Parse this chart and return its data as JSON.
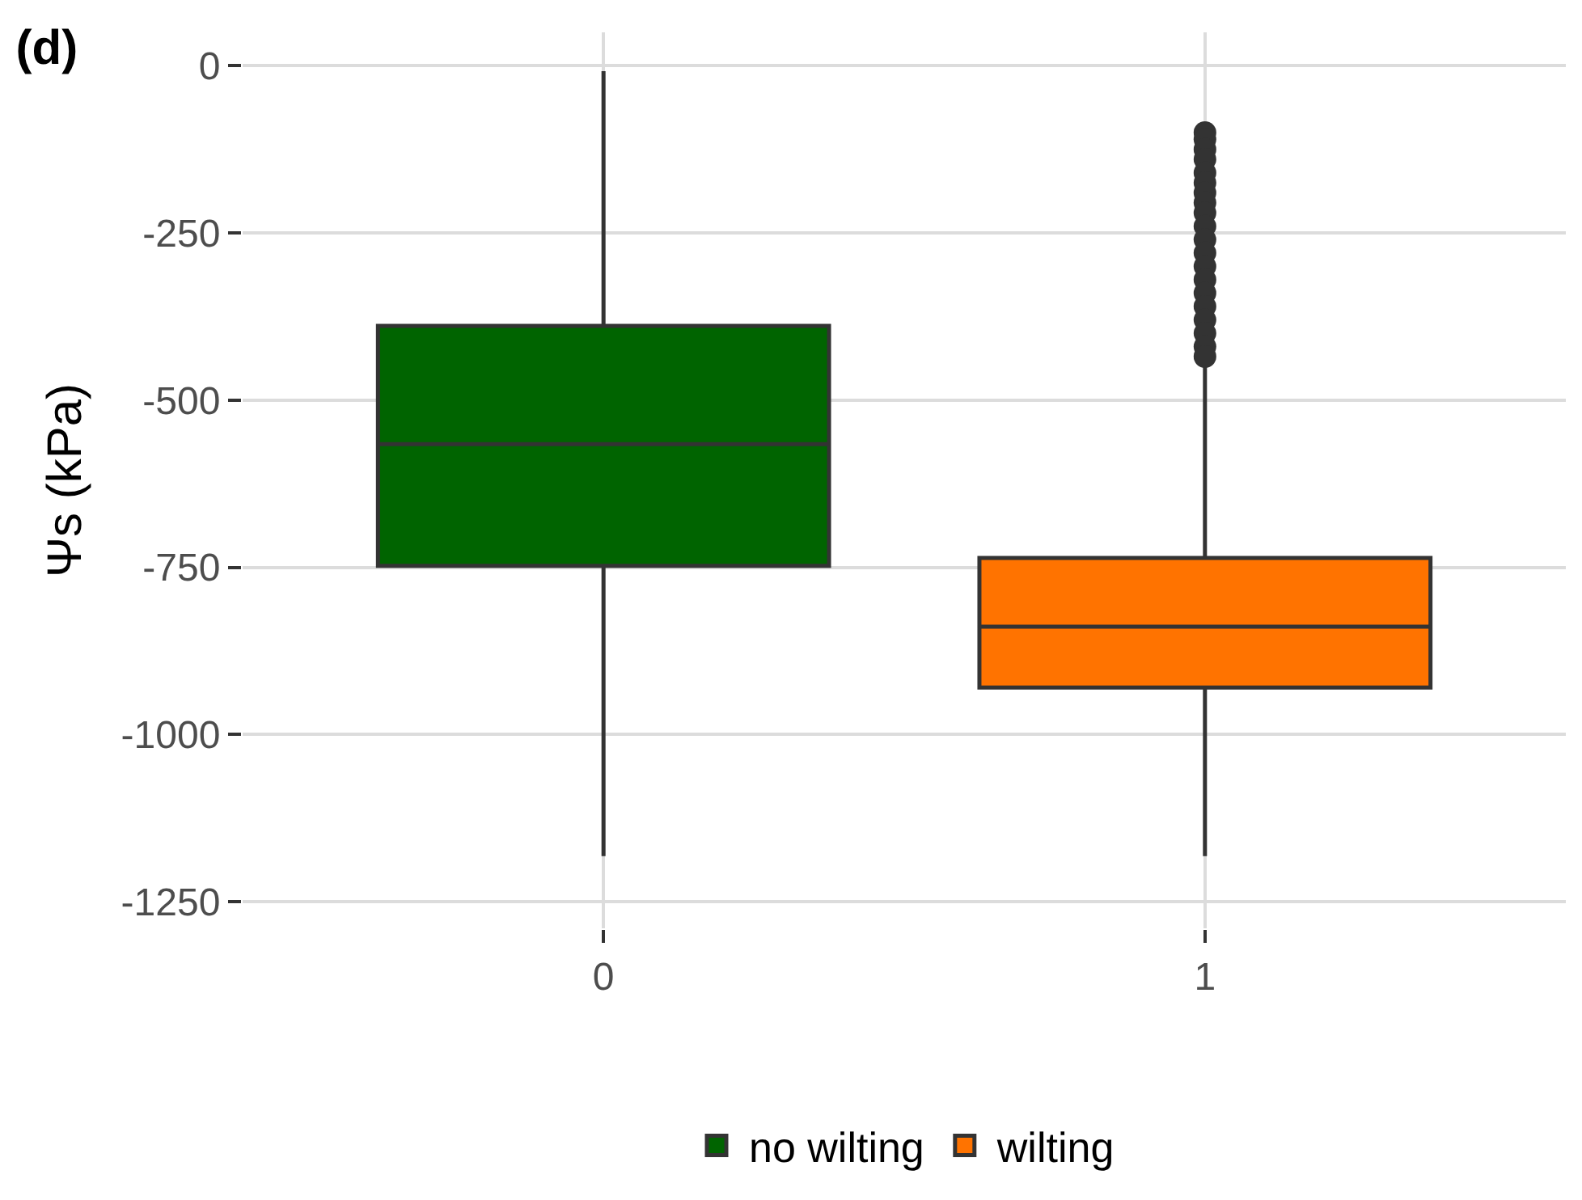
{
  "chart_data": {
    "type": "box",
    "title": "(d)",
    "ylabel": "Ψs (kPa)",
    "categories": [
      "0",
      "1"
    ],
    "series": [
      {
        "name": "no wilting",
        "color": "#006400",
        "boxes": [
          {
            "low": -1182,
            "q1": -748,
            "median": -566,
            "q3": -389,
            "high": -8
          },
          null
        ]
      },
      {
        "name": "wilting",
        "color": "#ff7300",
        "boxes": [
          null,
          {
            "low": -1182,
            "q1": -930,
            "median": -839,
            "q3": -736,
            "high": -448,
            "outliers": [
              -100,
              -110,
              -125,
              -140,
              -160,
              -175,
              -190,
              -205,
              -220,
              -240,
              -260,
              -280,
              -300,
              -320,
              -340,
              -360,
              -380,
              -400,
              -420,
              -435
            ]
          }
        ]
      }
    ],
    "ylim": [
      -1290,
      50
    ],
    "yticks": [
      0,
      -250,
      -500,
      -750,
      -1000,
      -1250
    ],
    "grid": true,
    "legend": "bottom"
  }
}
